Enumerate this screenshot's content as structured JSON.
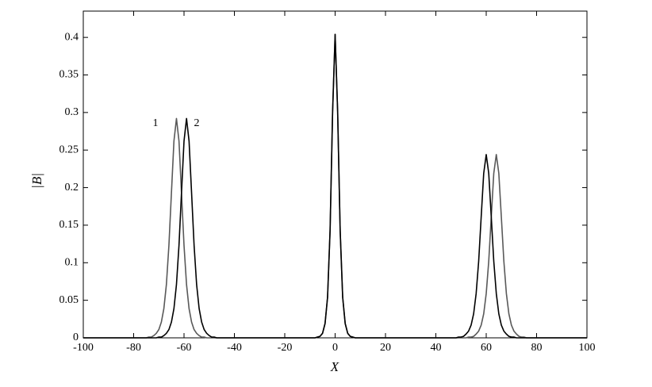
{
  "chart_data": {
    "type": "line",
    "x_label": "X",
    "y_label": "|B|",
    "annotations": [
      "1",
      "2"
    ],
    "x": [
      -100,
      -76,
      -75,
      -74,
      -73,
      -72,
      -71,
      -70,
      -69,
      -68,
      -67,
      -66,
      -65,
      -64,
      -63,
      -62,
      -61,
      -60,
      -59,
      -58,
      -57,
      -56,
      -55,
      -54,
      -53,
      -52,
      -51,
      -50,
      -49,
      -48,
      -47,
      -46,
      -8,
      -7,
      -6,
      -5,
      -4,
      -3,
      -2,
      -1,
      0,
      1,
      2,
      3,
      4,
      5,
      6,
      7,
      8,
      46,
      47,
      48,
      49,
      50,
      51,
      52,
      53,
      54,
      55,
      56,
      57,
      58,
      59,
      60,
      61,
      62,
      63,
      64,
      65,
      66,
      67,
      68,
      69,
      70,
      71,
      72,
      73,
      74,
      75,
      76,
      77,
      78,
      100
    ],
    "series": [
      {
        "name": "1",
        "color": "#595959",
        "values": [
          0,
          0,
          0,
          0.001,
          0.001,
          0.003,
          0.006,
          0.011,
          0.021,
          0.039,
          0.071,
          0.123,
          0.193,
          0.262,
          0.292,
          0.262,
          0.193,
          0.123,
          0.071,
          0.039,
          0.021,
          0.011,
          0.006,
          0.003,
          0.001,
          0.001,
          0,
          0,
          0,
          0,
          0,
          0,
          0,
          0.001,
          0.002,
          0.006,
          0.019,
          0.054,
          0.143,
          0.301,
          0.404,
          0.301,
          0.143,
          0.054,
          0.019,
          0.006,
          0.002,
          0.001,
          0,
          0,
          0,
          0,
          0,
          0,
          0,
          0,
          0.001,
          0.001,
          0.002,
          0.005,
          0.009,
          0.017,
          0.032,
          0.059,
          0.102,
          0.161,
          0.219,
          0.244,
          0.219,
          0.161,
          0.102,
          0.059,
          0.032,
          0.017,
          0.009,
          0.005,
          0.002,
          0.001,
          0.001,
          0,
          0,
          0,
          0
        ]
      },
      {
        "name": "2",
        "color": "#000000",
        "values": [
          0,
          0,
          0,
          0,
          0,
          0,
          0,
          0.001,
          0.001,
          0.003,
          0.006,
          0.011,
          0.021,
          0.039,
          0.071,
          0.123,
          0.193,
          0.262,
          0.292,
          0.262,
          0.193,
          0.123,
          0.071,
          0.039,
          0.021,
          0.011,
          0.006,
          0.003,
          0.001,
          0.001,
          0,
          0,
          0,
          0.001,
          0.002,
          0.006,
          0.019,
          0.054,
          0.143,
          0.301,
          0.404,
          0.301,
          0.143,
          0.054,
          0.019,
          0.006,
          0.002,
          0.001,
          0,
          0,
          0,
          0,
          0.001,
          0.001,
          0.002,
          0.005,
          0.009,
          0.017,
          0.032,
          0.059,
          0.102,
          0.161,
          0.219,
          0.244,
          0.219,
          0.161,
          0.102,
          0.059,
          0.032,
          0.017,
          0.009,
          0.005,
          0.002,
          0.001,
          0.001,
          0,
          0,
          0,
          0,
          0,
          0,
          0,
          0
        ]
      }
    ],
    "xlim": [
      -100,
      100
    ],
    "xticks": [
      -100,
      -80,
      -60,
      -40,
      -20,
      0,
      20,
      40,
      60,
      80,
      100
    ],
    "ylim": [
      0,
      0.435
    ],
    "yticks": [
      0,
      0.05,
      0.1,
      0.15,
      0.2,
      0.25,
      0.3,
      0.35,
      0.4
    ],
    "grid": false
  }
}
